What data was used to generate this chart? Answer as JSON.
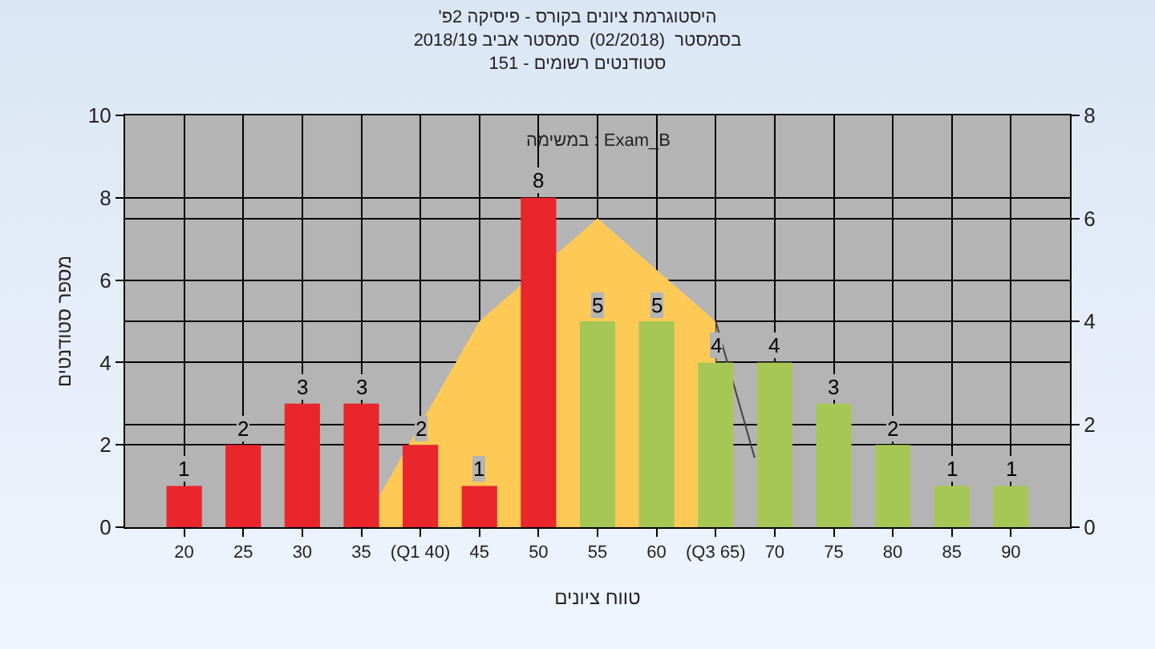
{
  "chart_data": {
    "type": "bar",
    "title": "'היסטוגרמת ציונים בקורס - פיסיקה 2פ",
    "subtitle": "בסמסטר  (02/2018)  סמסטר אביב 2018/19\nסטודנטים רשומים - 151",
    "xlabel": "טווח ציונים",
    "ylabel": "מספר סטודנטים",
    "annotations": [
      "במשימה : Exam_B"
    ],
    "x": [
      20,
      25,
      30,
      35,
      40,
      45,
      50,
      55,
      60,
      65,
      70,
      75,
      80,
      85,
      90
    ],
    "series": [
      {
        "colors": [
          "#e8262b",
          "#e8262b",
          "#e8262b",
          "#e8262b",
          "#e8262b",
          "#e8262b",
          "#e8262b",
          "#a6c756",
          "#a6c756",
          "#a6c756",
          "#a6c756",
          "#a6c756",
          "#a6c756",
          "#a6c756",
          "#a6c756"
        ],
        "values": [
          1,
          2,
          3,
          3,
          2,
          1,
          8,
          5,
          5,
          4,
          4,
          3,
          2,
          1,
          1
        ],
        "value_labels": [
          "1",
          "2",
          "3",
          "3",
          "2",
          "1",
          "8",
          "5",
          "5",
          "4",
          "4",
          "3",
          "2",
          "1",
          "1"
        ]
      },
      {
        "type": "area",
        "axis": "y2",
        "color": "#ffc955",
        "x": [
          35,
          40,
          45,
          50,
          55,
          60,
          65
        ],
        "values": [
          0,
          2,
          4,
          null,
          6,
          5,
          4
        ]
      },
      {
        "type": "line",
        "axis": "y2",
        "color": "#404040",
        "x": [
          65,
          68.3
        ],
        "values": [
          4,
          1.35
        ]
      }
    ],
    "grid": true,
    "xlim": [
      15,
      95
    ],
    "xticks": [
      20,
      25,
      30,
      35,
      {
        "value": 40,
        "label": "(Q1 40)"
      },
      45,
      50,
      55,
      60,
      {
        "value": 65,
        "label": "(Q3 65)"
      },
      70,
      75,
      80,
      85,
      90
    ],
    "ylim": [
      0,
      10
    ],
    "yticks": [
      0,
      2,
      4,
      6,
      8,
      10
    ],
    "y2lim": [
      0,
      8
    ],
    "y2ticks": [
      0,
      2,
      4,
      6,
      8
    ]
  }
}
